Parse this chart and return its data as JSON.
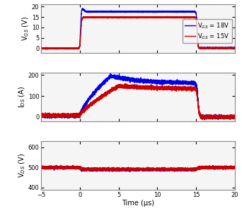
{
  "xlim": [
    -5,
    20
  ],
  "xticks": [
    -5,
    0,
    5,
    10,
    15,
    20
  ],
  "xlabel": "Time (μs)",
  "color_blue": "#0000EE",
  "color_red": "#CC0000",
  "subplot1": {
    "ylabel": "V$_{GS}$ (V)",
    "ylim": [
      -2,
      21
    ],
    "yticks": [
      0,
      5,
      10,
      15,
      20
    ]
  },
  "subplot2": {
    "ylabel": "I$_{DS}$ (A)",
    "ylim": [
      -20,
      210
    ],
    "yticks": [
      0,
      100,
      200
    ]
  },
  "subplot3": {
    "ylabel": "V$_{DS}$ (V)",
    "ylim": [
      390,
      630
    ],
    "yticks": [
      400,
      500,
      600
    ]
  }
}
